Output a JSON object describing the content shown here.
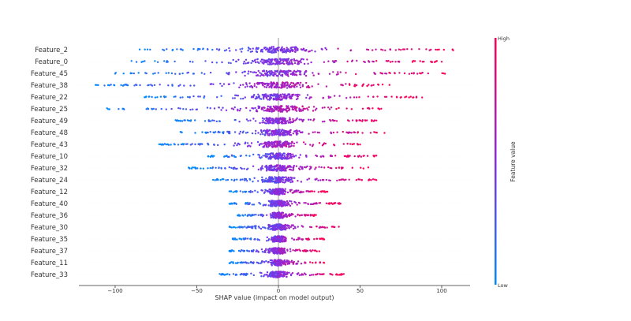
{
  "chart_data": {
    "type": "scatter",
    "subtype": "shap_beeswarm_summary",
    "title": "",
    "xlabel": "SHAP value (impact on model output)",
    "ylabel": "",
    "xlim": [
      -122,
      118
    ],
    "xticks": [
      -100,
      -50,
      0,
      50,
      100
    ],
    "xtick_labels": [
      "−100",
      "−50",
      "0",
      "50",
      "100"
    ],
    "grid": false,
    "colorbar": {
      "label": "Feature value",
      "high_label": "High",
      "low_label": "Low",
      "low_color": "#008bfb",
      "mid_color": "#8a2be2",
      "high_color": "#ff0051"
    },
    "features": [
      {
        "name": "Feature_2",
        "min": -85,
        "max": 107
      },
      {
        "name": "Feature_0",
        "min": -90,
        "max": 100
      },
      {
        "name": "Feature_45",
        "min": -100,
        "max": 102
      },
      {
        "name": "Feature_38",
        "min": -112,
        "max": 68
      },
      {
        "name": "Feature_22",
        "min": -82,
        "max": 88
      },
      {
        "name": "Feature_25",
        "min": -105,
        "max": 63
      },
      {
        "name": "Feature_49",
        "min": -63,
        "max": 60
      },
      {
        "name": "Feature_48",
        "min": -60,
        "max": 65
      },
      {
        "name": "Feature_43",
        "min": -73,
        "max": 50
      },
      {
        "name": "Feature_10",
        "min": -43,
        "max": 60
      },
      {
        "name": "Feature_32",
        "min": -55,
        "max": 55
      },
      {
        "name": "Feature_24",
        "min": -40,
        "max": 60
      },
      {
        "name": "Feature_12",
        "min": -30,
        "max": 30
      },
      {
        "name": "Feature_40",
        "min": -30,
        "max": 38
      },
      {
        "name": "Feature_36",
        "min": -25,
        "max": 23
      },
      {
        "name": "Feature_30",
        "min": -30,
        "max": 37
      },
      {
        "name": "Feature_35",
        "min": -28,
        "max": 28
      },
      {
        "name": "Feature_37",
        "min": -30,
        "max": 25
      },
      {
        "name": "Feature_11",
        "min": -30,
        "max": 28
      },
      {
        "name": "Feature_33",
        "min": -36,
        "max": 40
      }
    ],
    "points_per_feature": 200,
    "legend_position": "right"
  }
}
